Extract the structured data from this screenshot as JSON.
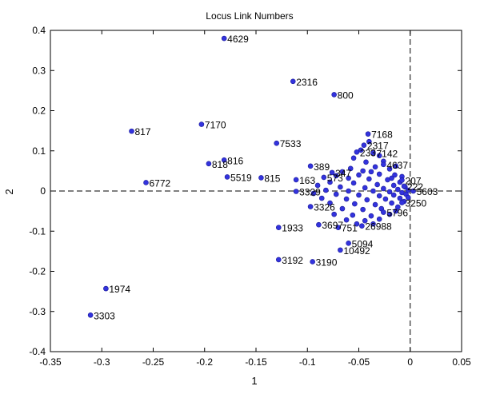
{
  "chart_data": {
    "type": "scatter",
    "title": "Locus Link Numbers",
    "xlabel": "1",
    "ylabel": "2",
    "xlim": [
      -0.35,
      0.05
    ],
    "ylim": [
      -0.4,
      0.4
    ],
    "xticks": [
      "-0.35",
      "-0.3",
      "-0.25",
      "-0.2",
      "-0.15",
      "-0.1",
      "-0.05",
      "0",
      "0.05"
    ],
    "yticks": [
      "0.4",
      "0.3",
      "0.2",
      "0.1",
      "0",
      "-0.1",
      "-0.2",
      "-0.3",
      "-0.4"
    ],
    "marker_color": "#3333dd",
    "labeled_points": [
      {
        "label": "4629",
        "x": -0.181,
        "y": 0.38
      },
      {
        "label": "2316",
        "x": -0.114,
        "y": 0.273
      },
      {
        "label": "800",
        "x": -0.074,
        "y": 0.24
      },
      {
        "label": "817",
        "x": -0.271,
        "y": 0.149
      },
      {
        "label": "7170",
        "x": -0.203,
        "y": 0.166
      },
      {
        "label": "7533",
        "x": -0.13,
        "y": 0.119
      },
      {
        "label": "7168",
        "x": -0.041,
        "y": 0.142
      },
      {
        "label": "816",
        "x": -0.181,
        "y": 0.077
      },
      {
        "label": "818",
        "x": -0.196,
        "y": 0.068
      },
      {
        "label": "5519",
        "x": -0.178,
        "y": 0.035
      },
      {
        "label": "815",
        "x": -0.145,
        "y": 0.033
      },
      {
        "label": "6772",
        "x": -0.257,
        "y": 0.021
      },
      {
        "label": "389",
        "x": -0.097,
        "y": 0.062
      },
      {
        "label": "163",
        "x": -0.111,
        "y": 0.028
      },
      {
        "label": "1933",
        "x": -0.128,
        "y": -0.091
      },
      {
        "label": "3192",
        "x": -0.128,
        "y": -0.171
      },
      {
        "label": "3190",
        "x": -0.095,
        "y": -0.176
      },
      {
        "label": "5094",
        "x": -0.06,
        "y": -0.13
      },
      {
        "label": "10492",
        "x": -0.068,
        "y": -0.147
      },
      {
        "label": "1974",
        "x": -0.296,
        "y": -0.243
      },
      {
        "label": "3303",
        "x": -0.311,
        "y": -0.309
      },
      {
        "label": "3326",
        "x": -0.097,
        "y": -0.039
      },
      {
        "label": "3697",
        "x": -0.089,
        "y": -0.084
      },
      {
        "label": "3329",
        "x": -0.111,
        "y": -0.001
      },
      {
        "label": "26988",
        "x": -0.047,
        "y": -0.087
      },
      {
        "label": "5796",
        "x": -0.026,
        "y": -0.053
      },
      {
        "label": "3250",
        "x": -0.008,
        "y": -0.029
      },
      {
        "label": "2317",
        "x": -0.045,
        "y": 0.114
      },
      {
        "label": "7142",
        "x": -0.036,
        "y": 0.095
      },
      {
        "label": "4637",
        "x": -0.026,
        "y": 0.066
      },
      {
        "label": "207",
        "x": -0.008,
        "y": 0.027
      },
      {
        "label": "5603",
        "x": 0.003,
        "y": 0.0
      },
      {
        "label": "222",
        "x": -0.006,
        "y": 0.012
      },
      {
        "label": "233",
        "x": -0.052,
        "y": 0.097
      },
      {
        "label": "347",
        "x": -0.076,
        "y": 0.046
      },
      {
        "label": "573",
        "x": -0.084,
        "y": 0.034
      },
      {
        "label": "751",
        "x": -0.07,
        "y": -0.091
      }
    ],
    "unlabeled_points": [
      [
        -0.04,
        0.123
      ],
      [
        -0.048,
        0.102
      ],
      [
        -0.03,
        0.088
      ],
      [
        -0.055,
        0.082
      ],
      [
        -0.043,
        0.072
      ],
      [
        -0.034,
        0.06
      ],
      [
        -0.058,
        0.056
      ],
      [
        -0.02,
        0.055
      ],
      [
        -0.046,
        0.05
      ],
      [
        -0.066,
        0.048
      ],
      [
        -0.05,
        0.04
      ],
      [
        -0.03,
        0.042
      ],
      [
        -0.015,
        0.04
      ],
      [
        -0.072,
        0.038
      ],
      [
        -0.06,
        0.032
      ],
      [
        -0.04,
        0.03
      ],
      [
        -0.022,
        0.028
      ],
      [
        -0.01,
        0.022
      ],
      [
        -0.078,
        0.022
      ],
      [
        -0.055,
        0.02
      ],
      [
        -0.032,
        0.016
      ],
      [
        -0.016,
        0.014
      ],
      [
        -0.005,
        0.01
      ],
      [
        -0.09,
        0.014
      ],
      [
        -0.068,
        0.01
      ],
      [
        -0.044,
        0.008
      ],
      [
        -0.026,
        0.006
      ],
      [
        -0.012,
        0.004
      ],
      [
        -0.002,
        0.002
      ],
      [
        -0.082,
        0.002
      ],
      [
        -0.06,
        0.0
      ],
      [
        -0.036,
        0.0
      ],
      [
        -0.02,
        -0.002
      ],
      [
        -0.008,
        -0.004
      ],
      [
        -0.094,
        -0.006
      ],
      [
        -0.072,
        -0.008
      ],
      [
        -0.05,
        -0.01
      ],
      [
        -0.03,
        -0.012
      ],
      [
        -0.016,
        -0.01
      ],
      [
        -0.004,
        -0.008
      ],
      [
        -0.086,
        -0.018
      ],
      [
        -0.062,
        -0.02
      ],
      [
        -0.042,
        -0.022
      ],
      [
        -0.024,
        -0.02
      ],
      [
        -0.01,
        -0.018
      ],
      [
        -0.078,
        -0.03
      ],
      [
        -0.054,
        -0.032
      ],
      [
        -0.034,
        -0.034
      ],
      [
        -0.018,
        -0.03
      ],
      [
        -0.006,
        -0.026
      ],
      [
        -0.066,
        -0.044
      ],
      [
        -0.046,
        -0.046
      ],
      [
        -0.028,
        -0.044
      ],
      [
        -0.012,
        -0.04
      ],
      [
        -0.074,
        -0.058
      ],
      [
        -0.056,
        -0.06
      ],
      [
        -0.038,
        -0.062
      ],
      [
        -0.02,
        -0.058
      ],
      [
        -0.062,
        -0.072
      ],
      [
        -0.044,
        -0.074
      ],
      [
        -0.03,
        -0.07
      ],
      [
        -0.052,
        -0.082
      ],
      [
        -0.036,
        -0.082
      ],
      [
        -0.014,
        -0.05
      ],
      [
        -0.002,
        -0.016
      ],
      [
        -0.026,
        0.074
      ],
      [
        -0.014,
        0.062
      ],
      [
        -0.018,
        0.032
      ],
      [
        -0.008,
        0.036
      ],
      [
        -0.038,
        0.048
      ]
    ]
  }
}
